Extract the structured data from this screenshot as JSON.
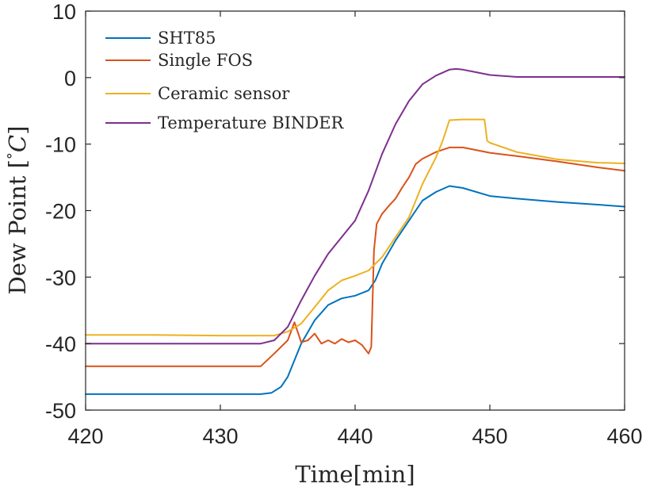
{
  "chart_data": {
    "type": "line",
    "xlabel": "Time[min]",
    "ylabel": "Dew Point [°C]",
    "ylabel_parts": {
      "main": "Dew Point [",
      "degree": "°",
      "unit": "C",
      "close": "]"
    },
    "xlim": [
      420,
      460
    ],
    "ylim": [
      -50,
      10
    ],
    "xticks": [
      420,
      430,
      440,
      450,
      460
    ],
    "yticks": [
      10,
      0,
      -10,
      -20,
      -30,
      -40,
      -50
    ],
    "xtick_labels": [
      "420",
      "430",
      "440",
      "450",
      "460"
    ],
    "ytick_labels": [
      "10",
      "0",
      "-10",
      "-20",
      "-30",
      "-40",
      "-50"
    ],
    "grid": false,
    "legend_position": "top-left",
    "series": [
      {
        "name": "SHT85",
        "color": "#0072BD",
        "x": [
          420,
          425,
          430,
          433,
          433.8,
          434.5,
          435,
          435.5,
          436,
          437,
          438,
          439,
          440,
          441,
          441.5,
          442,
          443,
          444,
          445,
          446,
          447,
          448,
          450,
          452,
          455,
          458,
          460
        ],
        "y": [
          -47.6,
          -47.6,
          -47.6,
          -47.6,
          -47.4,
          -46.5,
          -45,
          -42.5,
          -40,
          -36.5,
          -34.2,
          -33.2,
          -32.8,
          -32,
          -30.5,
          -28,
          -24.5,
          -21.5,
          -18.5,
          -17.2,
          -16.3,
          -16.6,
          -17.8,
          -18.2,
          -18.7,
          -19.1,
          -19.4
        ]
      },
      {
        "name": "Single FOS",
        "color": "#D95319",
        "x": [
          420,
          425,
          430,
          433,
          434,
          435,
          435.5,
          436,
          436.5,
          437,
          437.5,
          438,
          438.5,
          439,
          439.5,
          440,
          440.5,
          441,
          441.2,
          441.4,
          441.6,
          442,
          442.5,
          443,
          443.5,
          444,
          444.5,
          445,
          446,
          447,
          448,
          450,
          452,
          455,
          458,
          460
        ],
        "y": [
          -43.4,
          -43.4,
          -43.4,
          -43.4,
          -41.5,
          -39.5,
          -36.8,
          -39.8,
          -39.5,
          -38.5,
          -40,
          -39.5,
          -40,
          -39.3,
          -39.8,
          -39.5,
          -40.2,
          -41.5,
          -40.5,
          -26,
          -22,
          -20.5,
          -19.3,
          -18.2,
          -16.5,
          -15,
          -13,
          -12.2,
          -11.2,
          -10.5,
          -10.5,
          -11.3,
          -11.8,
          -12.6,
          -13.5,
          -14
        ]
      },
      {
        "name": "Ceramic sensor",
        "color": "#EDB120",
        "x": [
          420,
          425,
          430,
          434,
          435,
          436,
          437,
          438,
          439,
          440,
          441,
          442,
          443,
          444,
          445,
          446,
          446.5,
          447,
          448,
          449,
          449.6,
          449.8,
          450,
          452,
          455,
          458,
          460
        ],
        "y": [
          -38.7,
          -38.7,
          -38.8,
          -38.8,
          -38.2,
          -37,
          -34.5,
          -32,
          -30.5,
          -29.8,
          -29,
          -27,
          -24,
          -21,
          -16,
          -12,
          -9.5,
          -6.4,
          -6.3,
          -6.3,
          -6.3,
          -9.5,
          -9.8,
          -11.2,
          -12.3,
          -12.8,
          -12.9
        ]
      },
      {
        "name": "Temperature BINDER",
        "color": "#7E2F8E",
        "x": [
          420,
          425,
          430,
          433,
          434,
          435,
          436,
          437,
          438,
          439,
          440,
          441,
          442,
          443,
          444,
          445,
          446,
          447,
          447.5,
          448,
          449,
          450,
          452,
          455,
          458,
          460
        ],
        "y": [
          -40,
          -40,
          -40,
          -40,
          -39.5,
          -37.5,
          -33.5,
          -29.8,
          -26.5,
          -24,
          -21.5,
          -17,
          -11.5,
          -7,
          -3.5,
          -1,
          0.3,
          1.2,
          1.3,
          1.2,
          0.8,
          0.4,
          0.1,
          0.1,
          0.1,
          0.1
        ]
      }
    ]
  }
}
